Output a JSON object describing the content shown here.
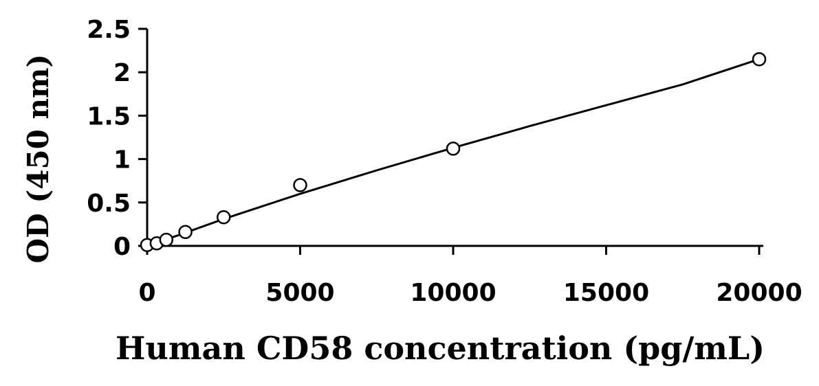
{
  "chart_data": {
    "type": "scatter",
    "title": "",
    "xlabel": "Human CD58 concentration (pg/mL)",
    "ylabel": "OD (450 nm)",
    "xlim": [
      0,
      20000
    ],
    "ylim": [
      0,
      2.5
    ],
    "x_ticks": [
      "0",
      "5000",
      "10000",
      "15000",
      "20000"
    ],
    "y_ticks": [
      "0",
      "0.5",
      "1",
      "1.5",
      "2",
      "2.5"
    ],
    "grid": false,
    "legend": "none",
    "series": [
      {
        "marker": "open-circle",
        "color": "#000000",
        "points": [
          {
            "x": 0,
            "y": 0.01
          },
          {
            "x": 312.5,
            "y": 0.03
          },
          {
            "x": 625,
            "y": 0.07
          },
          {
            "x": 1250,
            "y": 0.16
          },
          {
            "x": 2500,
            "y": 0.33
          },
          {
            "x": 5000,
            "y": 0.7
          },
          {
            "x": 10000,
            "y": 1.12
          },
          {
            "x": 20000,
            "y": 2.15
          }
        ]
      }
    ],
    "fit_curve": {
      "type": "polynomial",
      "color": "#000000",
      "points": [
        {
          "x": 0,
          "y": 0.0
        },
        {
          "x": 1000,
          "y": 0.12
        },
        {
          "x": 2500,
          "y": 0.31
        },
        {
          "x": 5000,
          "y": 0.6
        },
        {
          "x": 7500,
          "y": 0.87
        },
        {
          "x": 10000,
          "y": 1.13
        },
        {
          "x": 12500,
          "y": 1.38
        },
        {
          "x": 15000,
          "y": 1.62
        },
        {
          "x": 17500,
          "y": 1.86
        },
        {
          "x": 20000,
          "y": 2.15
        }
      ]
    }
  }
}
